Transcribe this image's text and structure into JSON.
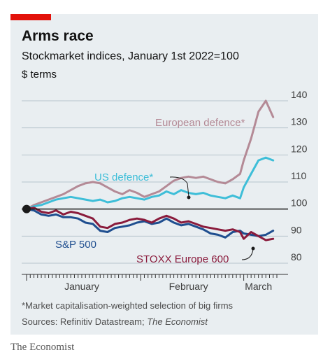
{
  "header": {
    "title": "Arms race",
    "subtitle": "Stockmarket indices, January 1st 2022=100",
    "units": "$ terms"
  },
  "footer": {
    "footnote": "*Market capitalisation-weighted selection of big firms",
    "source_prefix": "Sources: Refinitiv Datastream; ",
    "source_publication": "The Economist",
    "brand": "The Economist"
  },
  "colors": {
    "european_defence": "#b48a96",
    "us_defence": "#3ebed8",
    "sp500": "#1f4e8f",
    "stoxx600": "#8a1b3c",
    "brand_red": "#e3120b",
    "background": "#e9eef1"
  },
  "chart_data": {
    "type": "line",
    "title": "Arms race",
    "subtitle": "Stockmarket indices, January 1st 2022=100",
    "ylabel": "$ terms",
    "ylim": [
      80,
      142
    ],
    "yticks": [
      80,
      90,
      100,
      110,
      120,
      130,
      140
    ],
    "baseline": 100,
    "x_tick_labels": [
      "January",
      "February",
      "March"
    ],
    "x_range": [
      "2022-01-01",
      "2022-03-10"
    ],
    "grid": true,
    "series": [
      {
        "name": "European defence*",
        "color": "#b48a96",
        "x": [
          "2022-01-01",
          "2022-01-03",
          "2022-01-05",
          "2022-01-07",
          "2022-01-09",
          "2022-01-11",
          "2022-01-13",
          "2022-01-15",
          "2022-01-17",
          "2022-01-19",
          "2022-01-21",
          "2022-01-23",
          "2022-01-25",
          "2022-01-27",
          "2022-01-29",
          "2022-01-31",
          "2022-02-02",
          "2022-02-04",
          "2022-02-06",
          "2022-02-08",
          "2022-02-10",
          "2022-02-12",
          "2022-02-14",
          "2022-02-16",
          "2022-02-18",
          "2022-02-20",
          "2022-02-22",
          "2022-02-24",
          "2022-02-26",
          "2022-02-28",
          "2022-03-01",
          "2022-03-03",
          "2022-03-05",
          "2022-03-07",
          "2022-03-09"
        ],
        "values": [
          100,
          101.5,
          102.5,
          103.5,
          104.5,
          105.5,
          107,
          108.5,
          109.5,
          110,
          109.5,
          108,
          106.5,
          105.5,
          107,
          106,
          104.5,
          105.5,
          106.5,
          108.5,
          110.5,
          111.5,
          112,
          111.5,
          112,
          111,
          110,
          109.5,
          111,
          113,
          118,
          126,
          136,
          140,
          134
        ]
      },
      {
        "name": "US defence*",
        "color": "#3ebed8",
        "x": [
          "2022-01-01",
          "2022-01-03",
          "2022-01-05",
          "2022-01-07",
          "2022-01-09",
          "2022-01-11",
          "2022-01-13",
          "2022-01-15",
          "2022-01-17",
          "2022-01-19",
          "2022-01-21",
          "2022-01-23",
          "2022-01-25",
          "2022-01-27",
          "2022-01-29",
          "2022-01-31",
          "2022-02-02",
          "2022-02-04",
          "2022-02-06",
          "2022-02-08",
          "2022-02-10",
          "2022-02-12",
          "2022-02-14",
          "2022-02-16",
          "2022-02-18",
          "2022-02-20",
          "2022-02-22",
          "2022-02-24",
          "2022-02-26",
          "2022-02-28",
          "2022-03-01",
          "2022-03-03",
          "2022-03-05",
          "2022-03-07",
          "2022-03-09"
        ],
        "values": [
          100,
          101,
          101.5,
          102.5,
          103.5,
          104,
          104.5,
          104,
          103.5,
          103,
          103.5,
          102.5,
          103,
          104,
          104.5,
          104,
          103.5,
          104.5,
          105,
          106.5,
          105.5,
          107,
          106,
          105.5,
          106,
          105,
          104.5,
          104,
          105,
          104,
          108,
          113,
          118,
          119,
          118
        ]
      },
      {
        "name": "S&P 500",
        "color": "#1f4e8f",
        "x": [
          "2022-01-01",
          "2022-01-03",
          "2022-01-05",
          "2022-01-07",
          "2022-01-09",
          "2022-01-11",
          "2022-01-13",
          "2022-01-15",
          "2022-01-17",
          "2022-01-19",
          "2022-01-21",
          "2022-01-23",
          "2022-01-25",
          "2022-01-27",
          "2022-01-29",
          "2022-01-31",
          "2022-02-02",
          "2022-02-04",
          "2022-02-06",
          "2022-02-08",
          "2022-02-10",
          "2022-02-12",
          "2022-02-14",
          "2022-02-16",
          "2022-02-18",
          "2022-02-20",
          "2022-02-22",
          "2022-02-24",
          "2022-02-26",
          "2022-02-28",
          "2022-03-01",
          "2022-03-03",
          "2022-03-05",
          "2022-03-07",
          "2022-03-09"
        ],
        "values": [
          100,
          99.5,
          98,
          97.5,
          98,
          97,
          97,
          96.5,
          95,
          94.5,
          92,
          91.5,
          93,
          93.5,
          94,
          95,
          95.5,
          94.5,
          95,
          96.5,
          95,
          94,
          94.5,
          93.5,
          92.5,
          91,
          90.5,
          89.5,
          91.5,
          92,
          91,
          90.5,
          90,
          90.5,
          92
        ]
      },
      {
        "name": "STOXX Europe 600",
        "color": "#8a1b3c",
        "x": [
          "2022-01-01",
          "2022-01-03",
          "2022-01-05",
          "2022-01-07",
          "2022-01-09",
          "2022-01-11",
          "2022-01-13",
          "2022-01-15",
          "2022-01-17",
          "2022-01-19",
          "2022-01-21",
          "2022-01-23",
          "2022-01-25",
          "2022-01-27",
          "2022-01-29",
          "2022-01-31",
          "2022-02-02",
          "2022-02-04",
          "2022-02-06",
          "2022-02-08",
          "2022-02-10",
          "2022-02-12",
          "2022-02-14",
          "2022-02-16",
          "2022-02-18",
          "2022-02-20",
          "2022-02-22",
          "2022-02-24",
          "2022-02-26",
          "2022-02-28",
          "2022-03-01",
          "2022-03-03",
          "2022-03-05",
          "2022-03-07",
          "2022-03-09"
        ],
        "values": [
          100,
          100.5,
          99,
          98.5,
          99.5,
          98,
          99,
          98.5,
          97.5,
          96.5,
          93.5,
          93,
          94.5,
          95,
          96,
          96.5,
          96,
          95,
          96.5,
          97.5,
          96.5,
          95,
          95.5,
          94.5,
          93.5,
          93,
          92.5,
          92,
          92.5,
          91.5,
          89,
          91.5,
          90,
          88.5,
          89
        ]
      }
    ],
    "annotations": [
      "European defence*",
      "US defence*",
      "S&P 500",
      "STOXX Europe 600"
    ],
    "footnote": "*Market capitalisation-weighted selection of big firms",
    "source": "Sources: Refinitiv Datastream; The Economist"
  }
}
